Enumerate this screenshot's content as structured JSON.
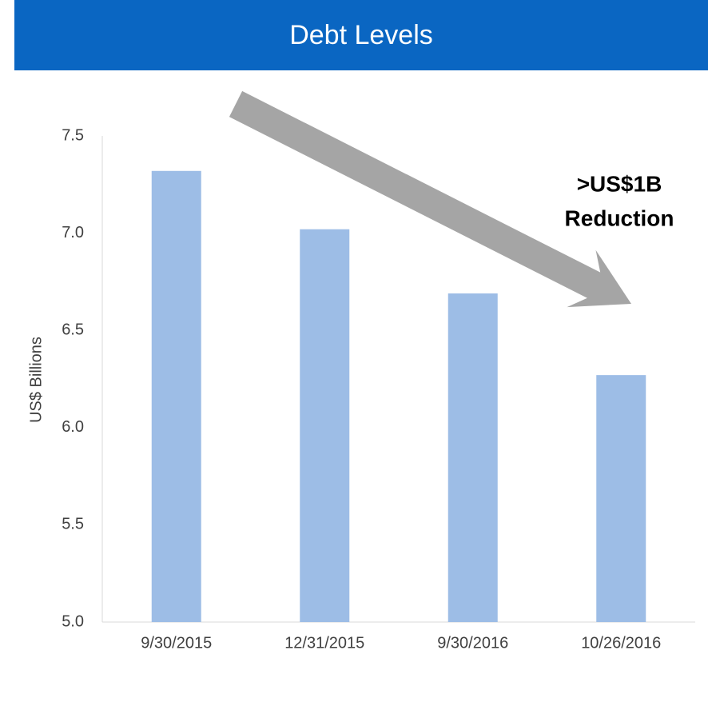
{
  "chart_data": {
    "type": "bar",
    "title": "Debt Levels",
    "y_label": "US$ Billions",
    "annotations": [
      ">US$1B",
      "Reduction"
    ],
    "categories": [
      "9/30/2015",
      "12/31/2015",
      "9/30/2016",
      "10/26/2016"
    ],
    "values": [
      7.32,
      7.02,
      6.69,
      6.27
    ],
    "color": "#9dbde6",
    "ylim": [
      5,
      7.5
    ],
    "yticks": [
      {
        "value": 5,
        "label": "5.0"
      },
      5.5,
      {
        "value": 6,
        "label": "6.0"
      },
      6.5,
      {
        "value": 7,
        "label": "7.0"
      },
      7.5
    ],
    "grid": false
  }
}
